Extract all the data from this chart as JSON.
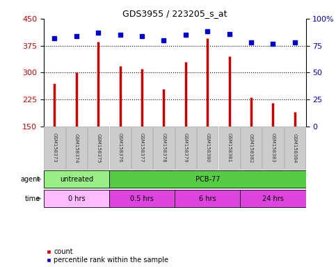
{
  "title": "GDS3955 / 223205_s_at",
  "samples": [
    "GSM158373",
    "GSM158374",
    "GSM158375",
    "GSM158376",
    "GSM158377",
    "GSM158378",
    "GSM158379",
    "GSM158380",
    "GSM158381",
    "GSM158382",
    "GSM158383",
    "GSM158384"
  ],
  "counts": [
    270,
    300,
    385,
    318,
    310,
    255,
    330,
    395,
    345,
    230,
    215,
    190
  ],
  "percentile_ranks": [
    82,
    84,
    87,
    85,
    84,
    80,
    85,
    88,
    86,
    78,
    77,
    78
  ],
  "ylim_left": [
    150,
    450
  ],
  "ylim_right": [
    0,
    100
  ],
  "yticks_left": [
    150,
    225,
    300,
    375,
    450
  ],
  "yticks_right": [
    0,
    25,
    50,
    75,
    100
  ],
  "bar_color": "#cc0000",
  "dot_color": "#0000cc",
  "agent_row": [
    {
      "label": "untreated",
      "start": 0,
      "end": 3,
      "color": "#99ee88"
    },
    {
      "label": "PCB-77",
      "start": 3,
      "end": 12,
      "color": "#55cc44"
    }
  ],
  "time_row": [
    {
      "label": "0 hrs",
      "start": 0,
      "end": 3,
      "color": "#ffbbff"
    },
    {
      "label": "0.5 hrs",
      "start": 3,
      "end": 6,
      "color": "#dd44dd"
    },
    {
      "label": "6 hrs",
      "start": 6,
      "end": 9,
      "color": "#dd44dd"
    },
    {
      "label": "24 hrs",
      "start": 9,
      "end": 12,
      "color": "#dd44dd"
    }
  ],
  "bar_bottom": 150,
  "sample_box_color": "#cccccc",
  "sample_box_edge": "#aaaaaa",
  "gridline_ticks": [
    225,
    300,
    375
  ],
  "ylabel_left_color": "#cc0000",
  "ylabel_right_color": "#0000cc",
  "legend_items": [
    {
      "label": "count",
      "color": "#cc0000"
    },
    {
      "label": "percentile rank within the sample",
      "color": "#0000cc"
    }
  ]
}
